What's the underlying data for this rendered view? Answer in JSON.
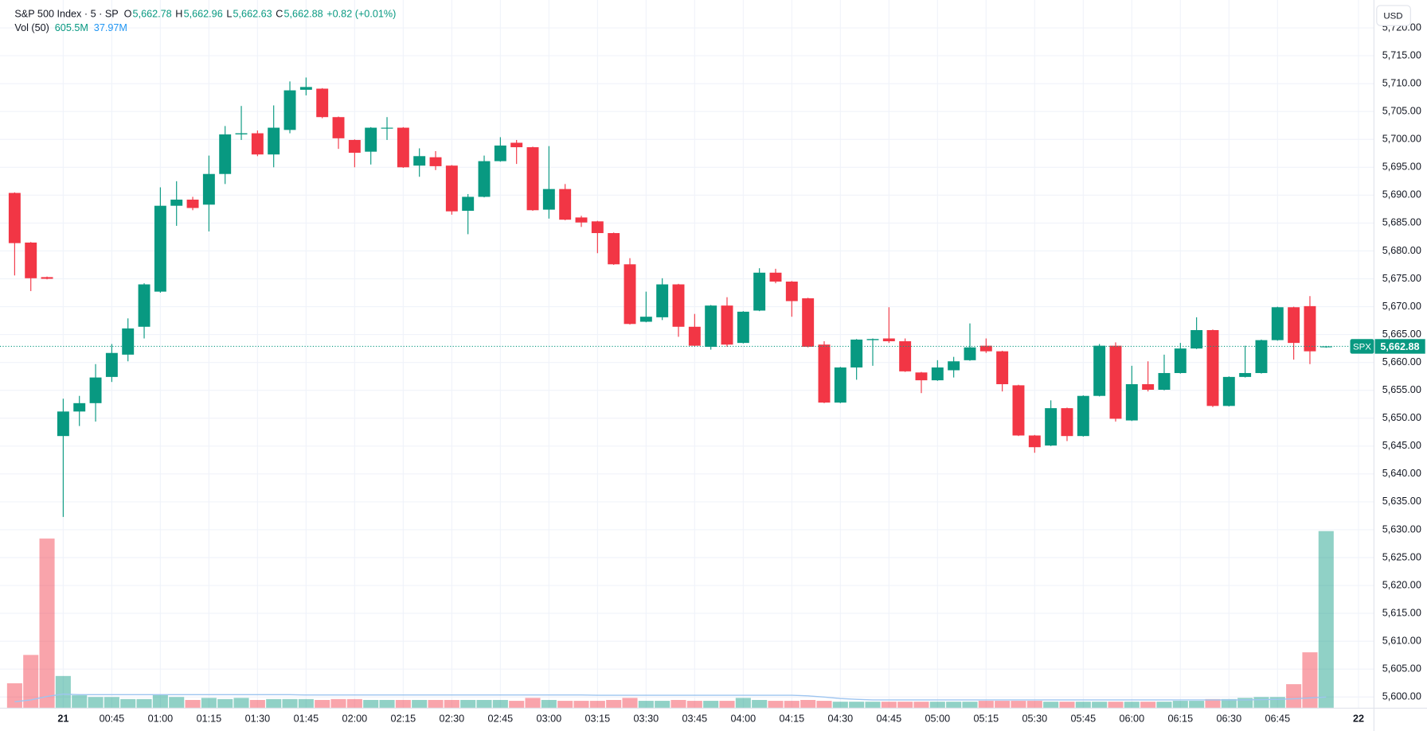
{
  "chart_data": {
    "type": "candlestick",
    "header": {
      "title": "S&P 500 Index · 5 · SP",
      "open_key": "O",
      "open": "5,662.78",
      "high_key": "H",
      "high": "5,662.96",
      "low_key": "L",
      "low": "5,662.63",
      "close_key": "C",
      "close": "5,662.88",
      "change": "+0.82 (+0.01%)",
      "volume_title": "Vol (50)",
      "volume": "605.5M",
      "volume_ma": "37.97M",
      "currency": "USD"
    },
    "price_tag": {
      "symbol": "SPX",
      "value_label": "5,662.88"
    },
    "up_color": "#089981",
    "down_color": "#f23645",
    "ma_color": "#9ec5f0",
    "categories": [
      null,
      null,
      null,
      "21",
      null,
      null,
      "00:45",
      null,
      null,
      "01:00",
      null,
      null,
      "01:15",
      null,
      null,
      "01:30",
      null,
      null,
      "01:45",
      null,
      null,
      "02:00",
      null,
      null,
      "02:15",
      null,
      null,
      "02:30",
      null,
      null,
      "02:45",
      null,
      null,
      "03:00",
      null,
      null,
      "03:15",
      null,
      null,
      "03:30",
      null,
      null,
      "03:45",
      null,
      null,
      "04:00",
      null,
      null,
      "04:15",
      null,
      null,
      "04:30",
      null,
      null,
      "04:45",
      null,
      null,
      "05:00",
      null,
      null,
      "05:15",
      null,
      null,
      "05:30",
      null,
      null,
      "05:45",
      null,
      null,
      "06:00",
      null,
      null,
      "06:15",
      null,
      null,
      "06:30",
      null,
      null,
      "06:45",
      null,
      null,
      null,
      null,
      "22"
    ],
    "open": [
      5690.4,
      5681.5,
      5675.3,
      5646.8,
      5651.2,
      5652.7,
      5657.4,
      5661.4,
      5666.4,
      5672.7,
      5688.1,
      5689.2,
      5688.3,
      5693.8,
      5700.9,
      5701.1,
      5697.3,
      5701.7,
      5708.9,
      5709.1,
      5704,
      5699.9,
      5697.8,
      5702,
      5702.1,
      5695.3,
      5696.8,
      5695.3,
      5687.2,
      5689.7,
      5696.1,
      5699.4,
      5698.6,
      5687.4,
      5691.1,
      5686,
      5685.3,
      5683.2,
      5677.6,
      5667.3,
      5668.1,
      5674,
      5666.4,
      5662.8,
      5670.2,
      5663.5,
      5669.3,
      5676.1,
      5674.5,
      5671.5,
      5663.2,
      5652.8,
      5659.1,
      5664,
      5664.3,
      5663.8,
      5658.2,
      5656.8,
      5658.6,
      5660.4,
      5663,
      5662,
      5655.9,
      5646.9,
      5645.1,
      5651.8,
      5646.8,
      5654,
      5663,
      5649.6,
      5656.1,
      5655.1,
      5658.1,
      5662.5,
      5665.8,
      5652.2,
      5657.4,
      5658.1,
      5664,
      5669.9,
      5670.1,
      5662.78,
      null,
      null
    ],
    "high": [
      5690.5,
      5681.6,
      5675.4,
      5653.5,
      5654,
      5659.7,
      5663.3,
      5667.9,
      5674.2,
      5691.4,
      5692.5,
      5689.7,
      5697.1,
      5702.4,
      5706,
      5701.6,
      5706.1,
      5710.4,
      5711.1,
      5709.2,
      5704.1,
      5700,
      5702.2,
      5704,
      5702.2,
      5698.4,
      5697.9,
      5695.4,
      5690.2,
      5697.1,
      5700.4,
      5699.9,
      5698.7,
      5698.8,
      5692,
      5686.3,
      5685.4,
      5683.3,
      5678.7,
      5672.7,
      5675.1,
      5674.1,
      5668.7,
      5670.3,
      5671.7,
      5669.2,
      5676.9,
      5676.8,
      5674.6,
      5671.6,
      5663.8,
      5659.2,
      5664.2,
      5664.3,
      5669.9,
      5664.3,
      5658.3,
      5660.4,
      5661,
      5667,
      5664.3,
      5662.1,
      5656,
      5647,
      5653.2,
      5651.9,
      5654.1,
      5663.3,
      5663.6,
      5659.4,
      5660.2,
      5661.4,
      5663.5,
      5668.1,
      5665.9,
      5657.5,
      5663,
      5664.1,
      5670,
      5670,
      5671.9,
      5662.96,
      null,
      null
    ],
    "low": [
      5675.6,
      5672.8,
      5674.9,
      5632.3,
      5648.6,
      5649.4,
      5656.5,
      5660.2,
      5664.3,
      5672.5,
      5684.5,
      5687.3,
      5683.5,
      5692,
      5699.9,
      5697,
      5695,
      5701.1,
      5707.9,
      5703.8,
      5698.3,
      5695,
      5695.5,
      5699.9,
      5694.9,
      5693.3,
      5694.5,
      5686.5,
      5683,
      5689.6,
      5696,
      5695.6,
      5687.2,
      5685.8,
      5685.5,
      5684.3,
      5679.6,
      5677.5,
      5666.8,
      5667.2,
      5667.6,
      5664.6,
      5662.9,
      5662.3,
      5662.8,
      5663.4,
      5669.2,
      5674.2,
      5668.2,
      5662.7,
      5652.7,
      5652.7,
      5656.9,
      5659.4,
      5663.5,
      5658.3,
      5654.5,
      5656.7,
      5657.3,
      5660.3,
      5661.7,
      5654.8,
      5646.8,
      5643.8,
      5645,
      5645.9,
      5646.7,
      5653.9,
      5649.4,
      5649.5,
      5654.8,
      5655,
      5658,
      5662.4,
      5652,
      5652.1,
      5657.3,
      5658,
      5663.9,
      5660.5,
      5659.7,
      5662.63,
      null,
      null
    ],
    "close": [
      5681.4,
      5675.1,
      5675.0,
      5651.2,
      5652.7,
      5657.3,
      5661.7,
      5666.1,
      5674,
      5688.1,
      5689.2,
      5687.7,
      5693.8,
      5700.9,
      5701.1,
      5697.3,
      5702.1,
      5708.8,
      5709.4,
      5704,
      5700.2,
      5697.6,
      5702.1,
      5702.1,
      5695,
      5697,
      5695.2,
      5687.1,
      5689.7,
      5696.1,
      5698.9,
      5698.6,
      5687.3,
      5691.1,
      5685.6,
      5685.1,
      5683.2,
      5677.6,
      5666.9,
      5668.2,
      5674,
      5666.4,
      5663,
      5670.2,
      5663.2,
      5669.1,
      5676.1,
      5674.5,
      5671,
      5662.8,
      5652.8,
      5659.1,
      5664.1,
      5664.2,
      5663.8,
      5658.4,
      5656.8,
      5659.1,
      5660.2,
      5662.7,
      5662,
      5656.1,
      5646.9,
      5644.8,
      5651.8,
      5646.8,
      5654,
      5663,
      5649.9,
      5656.1,
      5655.1,
      5658.1,
      5662.5,
      5665.8,
      5652.2,
      5657.4,
      5658.1,
      5664,
      5669.9,
      5663.5,
      5662,
      5662.88,
      null,
      null
    ],
    "volume": [
      85,
      182,
      580,
      110,
      44,
      38,
      38,
      31,
      31,
      47,
      38,
      28,
      35,
      31,
      35,
      28,
      31,
      31,
      31,
      28,
      31,
      31,
      28,
      28,
      28,
      28,
      28,
      28,
      28,
      28,
      28,
      25,
      35,
      28,
      25,
      25,
      25,
      28,
      35,
      25,
      25,
      28,
      25,
      25,
      25,
      35,
      28,
      25,
      25,
      28,
      25,
      22,
      22,
      22,
      22,
      22,
      22,
      22,
      22,
      22,
      25,
      25,
      25,
      25,
      22,
      22,
      22,
      22,
      22,
      22,
      22,
      22,
      25,
      25,
      31,
      31,
      35,
      38,
      38,
      82,
      191,
      605.5,
      null,
      null
    ],
    "volume_ma": [
      22,
      28,
      40,
      48,
      46,
      46,
      46,
      46,
      46,
      46,
      46,
      46,
      46,
      46,
      46,
      46,
      46,
      46,
      45,
      45,
      45,
      45,
      45,
      45,
      45,
      45,
      45,
      45,
      45,
      45,
      45,
      45,
      45,
      45,
      45,
      45,
      44,
      44,
      44,
      44,
      44,
      44,
      44,
      44,
      44,
      44,
      44,
      44,
      44,
      42,
      38,
      33,
      30,
      28,
      28,
      28,
      28,
      28,
      28,
      28,
      28,
      28,
      28,
      28,
      28,
      28,
      28,
      28,
      28,
      28,
      28,
      28,
      28,
      28,
      28,
      28,
      28,
      29,
      30,
      32,
      35,
      37.97,
      null,
      null
    ],
    "ylim": [
      5598,
      5725
    ],
    "volume_ylim": [
      0,
      700
    ],
    "grid": true,
    "yticks": [
      {
        "value": 5600,
        "label": "5,600.00"
      },
      {
        "value": 5605,
        "label": "5,605.00"
      },
      {
        "value": 5610,
        "label": "5,610.00"
      },
      {
        "value": 5615,
        "label": "5,615.00"
      },
      {
        "value": 5620,
        "label": "5,620.00"
      },
      {
        "value": 5625,
        "label": "5,625.00"
      },
      {
        "value": 5630,
        "label": "5,630.00"
      },
      {
        "value": 5635,
        "label": "5,635.00"
      },
      {
        "value": 5640,
        "label": "5,640.00"
      },
      {
        "value": 5645,
        "label": "5,645.00"
      },
      {
        "value": 5650,
        "label": "5,650.00"
      },
      {
        "value": 5655,
        "label": "5,655.00"
      },
      {
        "value": 5660,
        "label": "5,660.00"
      },
      {
        "value": 5665,
        "label": "5,665.00"
      },
      {
        "value": 5670,
        "label": "5,670.00"
      },
      {
        "value": 5675,
        "label": "5,675.00"
      },
      {
        "value": 5680,
        "label": "5,680.00"
      },
      {
        "value": 5685,
        "label": "5,685.00"
      },
      {
        "value": 5690,
        "label": "5,690.00"
      },
      {
        "value": 5695,
        "label": "5,695.00"
      },
      {
        "value": 5700,
        "label": "5,700.00"
      },
      {
        "value": 5705,
        "label": "5,705.00"
      },
      {
        "value": 5710,
        "label": "5,710.00"
      },
      {
        "value": 5715,
        "label": "5,715.00"
      },
      {
        "value": 5720,
        "label": "5,720.00"
      }
    ]
  }
}
